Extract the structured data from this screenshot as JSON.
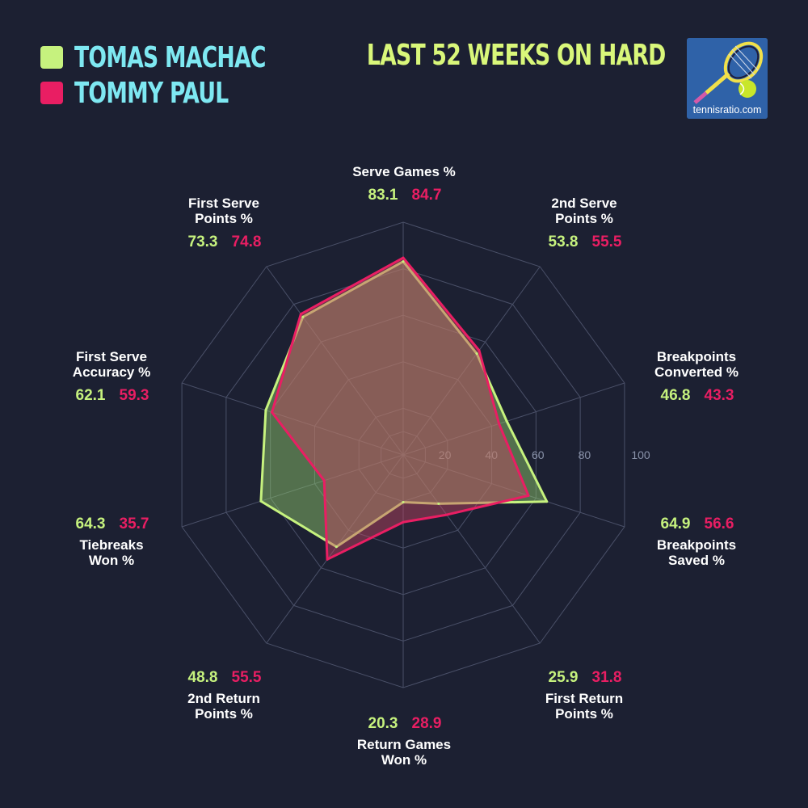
{
  "legend": [
    {
      "name": "TOMAS MACHAC",
      "color": "#c6f27e"
    },
    {
      "name": "TOMMY PAUL",
      "color": "#e91e63"
    }
  ],
  "headline": "LAST 52 WEEKS ON HARD",
  "logo": {
    "text": "tennisratio.com",
    "icon": "tennis-racket-ball-icon"
  },
  "chart_data": {
    "type": "radar",
    "title": "LAST 52 WEEKS ON HARD",
    "axis_range": [
      0,
      100
    ],
    "ticks": [
      "20",
      "40",
      "60",
      "80",
      "100"
    ],
    "grid": true,
    "categories": [
      [
        "Serve Games %"
      ],
      [
        "2nd Serve",
        "Points %"
      ],
      [
        "Breakpoints",
        "Converted %"
      ],
      [
        "Breakpoints",
        "Saved %"
      ],
      [
        "First Return",
        "Points %"
      ],
      [
        "Return Games",
        "Won %"
      ],
      [
        "2nd Return",
        "Points %"
      ],
      [
        "Tiebreaks",
        "Won %"
      ],
      [
        "First Serve",
        "Accuracy %"
      ],
      [
        "First Serve",
        "Points %"
      ]
    ],
    "series": [
      {
        "name": "TOMAS MACHAC",
        "color": "#c6f27e",
        "values": [
          83.1,
          53.8,
          46.8,
          64.9,
          25.9,
          20.3,
          48.8,
          64.3,
          62.1,
          73.3
        ],
        "labels": [
          "83.1",
          "53.8",
          "46.8",
          "64.9",
          "25.9",
          "20.3",
          "48.8",
          "64.3",
          "62.1",
          "73.3"
        ]
      },
      {
        "name": "TOMMY PAUL",
        "color": "#e91e63",
        "values": [
          84.7,
          55.5,
          43.3,
          56.6,
          31.8,
          28.9,
          55.5,
          35.7,
          59.3,
          74.8
        ],
        "labels": [
          "84.7",
          "55.5",
          "43.3",
          "56.6",
          "31.8",
          "28.9",
          "55.5",
          "35.7",
          "59.3",
          "74.8"
        ]
      }
    ]
  }
}
